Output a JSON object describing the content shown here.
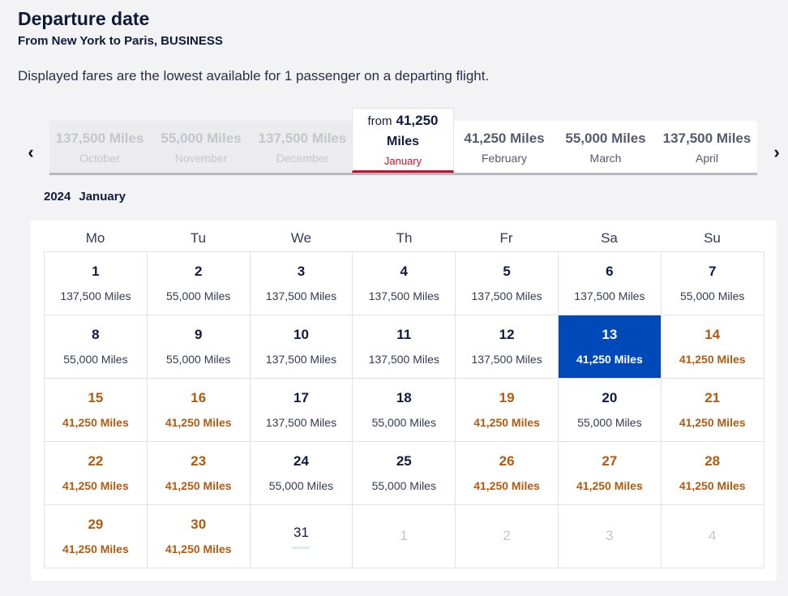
{
  "header": {
    "title": "Departure date",
    "subtitle": "From New York to Paris, BUSINESS",
    "note": "Displayed fares are the lowest available for 1 passenger on a departing flight."
  },
  "nav": {
    "prev_icon": "chevron-left-icon",
    "next_icon": "chevron-right-icon",
    "prev": "‹",
    "next": "›"
  },
  "months": [
    {
      "name": "October",
      "miles": "137,500 Miles",
      "state": "past"
    },
    {
      "name": "November",
      "miles": "55,000 Miles",
      "state": "past"
    },
    {
      "name": "December",
      "miles": "137,500 Miles",
      "state": "past"
    },
    {
      "name": "January",
      "from": "from",
      "miles_value": "41,250",
      "miles_unit": "Miles",
      "state": "active"
    },
    {
      "name": "February",
      "miles": "41,250 Miles",
      "state": "normal"
    },
    {
      "name": "March",
      "miles": "55,000 Miles",
      "state": "normal"
    },
    {
      "name": "April",
      "miles": "137,500 Miles",
      "state": "normal"
    }
  ],
  "calendar": {
    "year": "2024",
    "month": "January",
    "weekdays": [
      "Mo",
      "Tu",
      "We",
      "Th",
      "Fr",
      "Sa",
      "Su"
    ],
    "days": [
      {
        "day": "1",
        "price": "137,500 Miles"
      },
      {
        "day": "2",
        "price": "55,000 Miles"
      },
      {
        "day": "3",
        "price": "137,500 Miles"
      },
      {
        "day": "4",
        "price": "137,500 Miles"
      },
      {
        "day": "5",
        "price": "137,500 Miles"
      },
      {
        "day": "6",
        "price": "137,500 Miles"
      },
      {
        "day": "7",
        "price": "55,000 Miles"
      },
      {
        "day": "8",
        "price": "55,000 Miles"
      },
      {
        "day": "9",
        "price": "55,000 Miles"
      },
      {
        "day": "10",
        "price": "137,500 Miles"
      },
      {
        "day": "11",
        "price": "137,500 Miles"
      },
      {
        "day": "12",
        "price": "137,500 Miles"
      },
      {
        "day": "13",
        "price": "41,250 Miles",
        "state": "selected"
      },
      {
        "day": "14",
        "price": "41,250 Miles",
        "state": "lowest"
      },
      {
        "day": "15",
        "price": "41,250 Miles",
        "state": "lowest"
      },
      {
        "day": "16",
        "price": "41,250 Miles",
        "state": "lowest"
      },
      {
        "day": "17",
        "price": "137,500 Miles"
      },
      {
        "day": "18",
        "price": "55,000 Miles"
      },
      {
        "day": "19",
        "price": "41,250 Miles",
        "state": "lowest"
      },
      {
        "day": "20",
        "price": "55,000 Miles"
      },
      {
        "day": "21",
        "price": "41,250 Miles",
        "state": "lowest"
      },
      {
        "day": "22",
        "price": "41,250 Miles",
        "state": "lowest"
      },
      {
        "day": "23",
        "price": "41,250 Miles",
        "state": "lowest"
      },
      {
        "day": "24",
        "price": "55,000 Miles"
      },
      {
        "day": "25",
        "price": "55,000 Miles"
      },
      {
        "day": "26",
        "price": "41,250 Miles",
        "state": "lowest"
      },
      {
        "day": "27",
        "price": "41,250 Miles",
        "state": "lowest"
      },
      {
        "day": "28",
        "price": "41,250 Miles",
        "state": "lowest"
      },
      {
        "day": "29",
        "price": "41,250 Miles",
        "state": "lowest"
      },
      {
        "day": "30",
        "price": "41,250 Miles",
        "state": "lowest"
      },
      {
        "day": "31",
        "price": "",
        "state": "nofare"
      },
      {
        "day": "1",
        "state": "outside"
      },
      {
        "day": "2",
        "state": "outside"
      },
      {
        "day": "3",
        "state": "outside"
      },
      {
        "day": "4",
        "state": "outside"
      }
    ]
  },
  "colors": {
    "accent_red": "#c8102e",
    "selected_blue": "#0049b8",
    "lowest_fare": "#b25a10",
    "text_dark": "#111a3f"
  }
}
